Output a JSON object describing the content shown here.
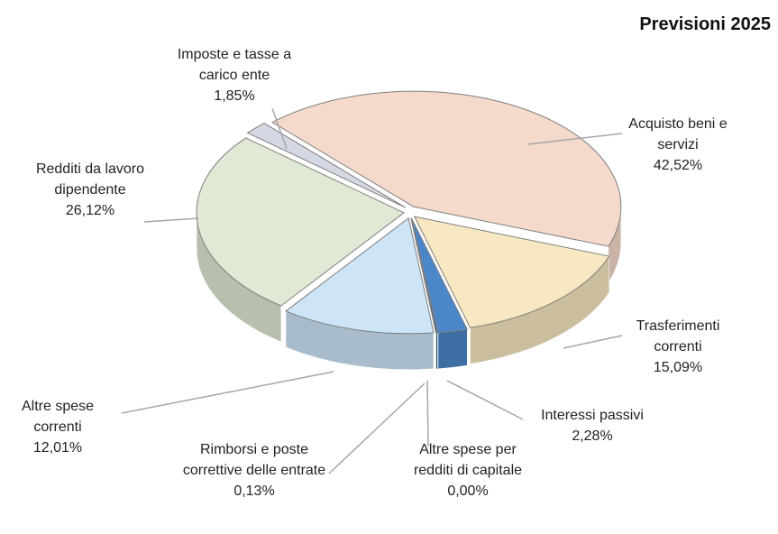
{
  "chart_data": {
    "type": "pie",
    "title": "Previsioni 2025",
    "categories": [
      "Acquisto beni e servizi",
      "Trasferimenti correnti",
      "Interessi passivi",
      "Altre spese per redditi di capitale",
      "Rimborsi e poste correttive delle entrate",
      "Altre spese correnti",
      "Redditi da lavoro dipendente",
      "Imposte e tasse a carico ente"
    ],
    "values": [
      42.52,
      15.09,
      2.28,
      0.0,
      0.13,
      12.01,
      26.12,
      1.85
    ],
    "value_labels": [
      "42,52%",
      "15,09%",
      "2,28%",
      "0,00%",
      "0,13%",
      "12,01%",
      "26,12%",
      "1,85%"
    ],
    "colors": [
      "#f5dacb",
      "#f7e8c2",
      "#4a86c8",
      "#1f4e79",
      "#2f5f8f",
      "#cde5f7",
      "#dfe9d3",
      "#d3d8e2"
    ]
  }
}
